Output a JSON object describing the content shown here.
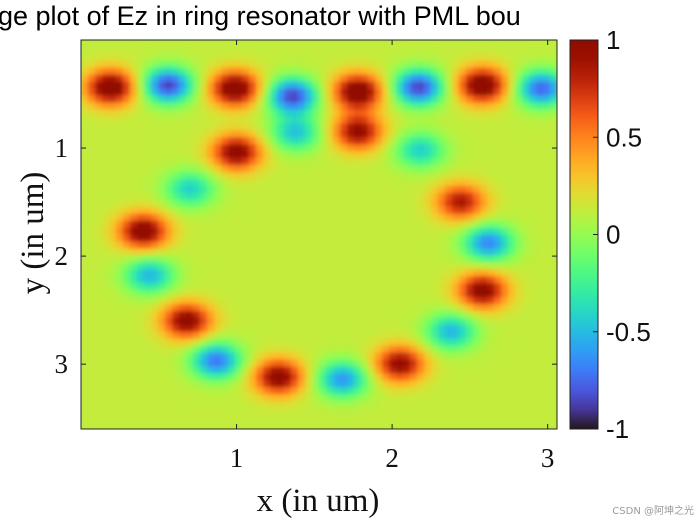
{
  "chart_data": {
    "type": "heatmap",
    "title": "ge plot of Ez in ring resonator with PML bou",
    "xlabel": "x (in um)",
    "ylabel": "y (in um)",
    "xlim": [
      0.0,
      3.06
    ],
    "ylim": [
      0.0,
      3.6
    ],
    "y_axis_reversed": true,
    "x_ticks": [
      {
        "value": 1,
        "label": "1"
      },
      {
        "value": 2,
        "label": "2"
      },
      {
        "value": 3,
        "label": "3"
      }
    ],
    "y_ticks": [
      {
        "value": 1,
        "label": "1"
      },
      {
        "value": 2,
        "label": "2"
      },
      {
        "value": 3,
        "label": "3"
      }
    ],
    "colorbar": {
      "colormap": "turbo",
      "clim": [
        -1,
        1
      ],
      "ticks": [
        {
          "value": 1,
          "label": "1"
        },
        {
          "value": 0.5,
          "label": "0.5"
        },
        {
          "value": 0,
          "label": "0"
        },
        {
          "value": -0.5,
          "label": "-0.5"
        },
        {
          "value": -1,
          "label": "-1"
        }
      ]
    },
    "field_lobes": [
      {
        "x": 0.19,
        "y": 0.44,
        "amplitude": 1.0
      },
      {
        "x": 0.56,
        "y": 0.42,
        "amplitude": -1.0
      },
      {
        "x": 0.99,
        "y": 0.45,
        "amplitude": 1.0
      },
      {
        "x": 1.36,
        "y": 0.52,
        "amplitude": -1.0
      },
      {
        "x": 1.78,
        "y": 0.48,
        "amplitude": 1.0
      },
      {
        "x": 2.17,
        "y": 0.44,
        "amplitude": -1.0
      },
      {
        "x": 2.58,
        "y": 0.42,
        "amplitude": 1.0
      },
      {
        "x": 2.96,
        "y": 0.45,
        "amplitude": -0.9
      },
      {
        "x": 1.78,
        "y": 0.85,
        "amplitude": 0.85
      },
      {
        "x": 1.0,
        "y": 1.04,
        "amplitude": 0.9
      },
      {
        "x": 1.38,
        "y": 0.86,
        "amplitude": -0.6
      },
      {
        "x": 2.18,
        "y": 1.02,
        "amplitude": -0.55
      },
      {
        "x": 0.7,
        "y": 1.38,
        "amplitude": -0.55
      },
      {
        "x": 2.44,
        "y": 1.5,
        "amplitude": 0.75
      },
      {
        "x": 0.4,
        "y": 1.77,
        "amplitude": 0.95
      },
      {
        "x": 2.62,
        "y": 1.88,
        "amplitude": -0.8
      },
      {
        "x": 0.44,
        "y": 2.18,
        "amplitude": -0.65
      },
      {
        "x": 2.58,
        "y": 2.32,
        "amplitude": 0.9
      },
      {
        "x": 0.68,
        "y": 2.6,
        "amplitude": 0.9
      },
      {
        "x": 2.38,
        "y": 2.7,
        "amplitude": -0.65
      },
      {
        "x": 0.87,
        "y": 2.97,
        "amplitude": -0.85
      },
      {
        "x": 2.05,
        "y": 3.0,
        "amplitude": 0.85
      },
      {
        "x": 1.27,
        "y": 3.12,
        "amplitude": 0.9
      },
      {
        "x": 1.68,
        "y": 3.14,
        "amplitude": -0.75
      }
    ]
  },
  "watermark": "CSDN @阿坤之光"
}
